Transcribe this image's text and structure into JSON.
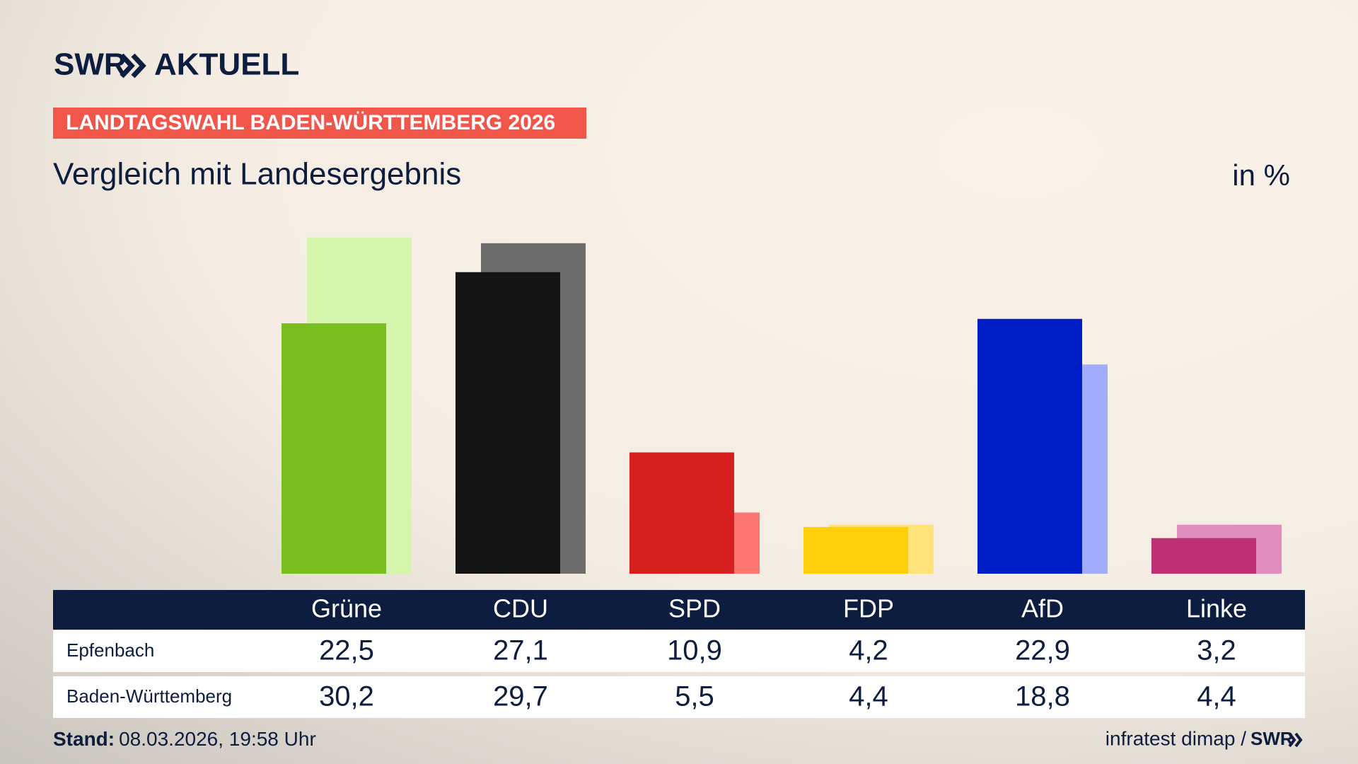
{
  "chart_data": {
    "type": "bar",
    "brand": "SWR",
    "brand_section": "AKTUELL",
    "title": "LANDTAGSWAHL BADEN-WÜRTTEMBERG 2026",
    "subtitle": "Vergleich mit Landesergebnis",
    "unit_label": "in %",
    "categories": [
      "Grüne",
      "CDU",
      "SPD",
      "FDP",
      "AfD",
      "Linke"
    ],
    "series": [
      {
        "name": "Epfenbach",
        "colors": [
          "#78be1e",
          "#141414",
          "#d71f1f",
          "#ffcf0a",
          "#001fc8",
          "#bd3075"
        ],
        "values": [
          22.5,
          27.1,
          10.9,
          4.2,
          22.9,
          3.2
        ],
        "value_labels": [
          "22,5",
          "27,1",
          "10,9",
          "4,2",
          "22,9",
          "3,2"
        ]
      },
      {
        "name": "Baden-Württemberg",
        "colors": [
          "#d6f5ac",
          "#6f6d6b",
          "#ff7570",
          "#ffe27a",
          "#a1acfd",
          "#e08cbd"
        ],
        "values": [
          30.2,
          29.7,
          5.5,
          4.4,
          18.8,
          4.4
        ],
        "value_labels": [
          "30,2",
          "29,7",
          "5,5",
          "4,4",
          "18,8",
          "4,4"
        ]
      }
    ],
    "footer_label": "Stand:",
    "footer_date": "08.03.2026, 19:58 Uhr",
    "source": "infratest dimap /",
    "source_brand": "SWR"
  }
}
